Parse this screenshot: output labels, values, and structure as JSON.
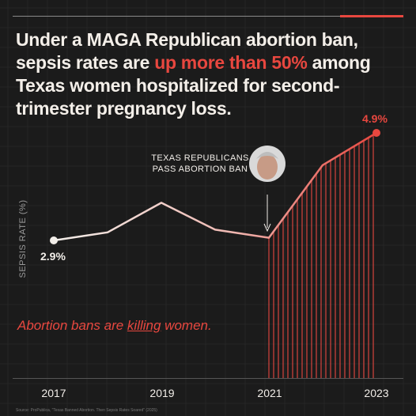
{
  "title": {
    "part1": "Under a MAGA Republican abortion ban, sepsis rates are ",
    "highlight": "up more than 50%",
    "part2": " among Texas women hospitalized for second-trimester pregnancy loss."
  },
  "annotation": {
    "line1": "TEXAS REPUBLICANS",
    "line2": "PASS ABORTION BAN"
  },
  "tagline": {
    "before": "Abortion bans are ",
    "underlined": "killing",
    "after": " women."
  },
  "source": "Source: ProPublica, \"Texas Banned Abortion. Then Sepsis Rates Soared\" (2025)",
  "colors": {
    "background": "#1b1b1b",
    "accent": "#e8473f",
    "text": "#f2eee9"
  },
  "chart_data": {
    "type": "line",
    "title": "Under a MAGA Republican abortion ban, sepsis rates are up more than 50% among Texas women hospitalized for second-trimester pregnancy loss.",
    "xlabel": "",
    "ylabel": "SEPSIS RATE (%)",
    "x": [
      2017,
      2018,
      2019,
      2020,
      2021,
      2022,
      2023
    ],
    "x_tick_labels": [
      "2017",
      "2019",
      "2021",
      "2023"
    ],
    "series": [
      {
        "values": [
          2.9,
          3.05,
          3.6,
          3.1,
          2.95,
          4.3,
          4.9
        ]
      }
    ],
    "data_labels": {
      "start": "2.9%",
      "end": "4.9%"
    },
    "event": {
      "x": 2021,
      "label": "TEXAS REPUBLICANS PASS ABORTION BAN"
    },
    "ylim": [
      1.5,
      5.5
    ],
    "grid": true,
    "legend": "none"
  }
}
